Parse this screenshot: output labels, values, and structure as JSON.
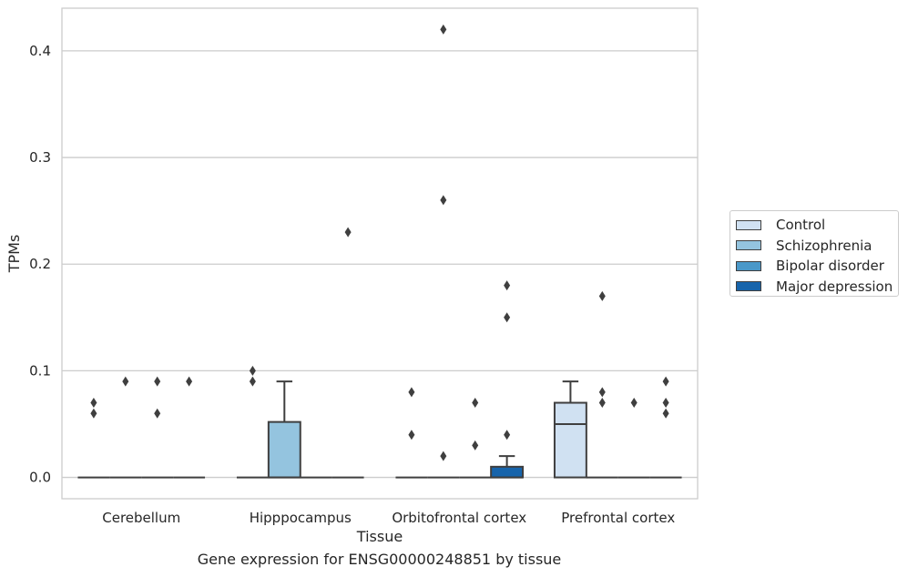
{
  "chart_data": {
    "type": "box",
    "title": "",
    "caption": "Gene expression for ENSG00000248851 by tissue",
    "xlabel": "Tissue",
    "ylabel": "TPMs",
    "ylim": [
      -0.02,
      0.44
    ],
    "yticks": [
      0.0,
      0.1,
      0.2,
      0.3,
      0.4
    ],
    "ytick_labels": [
      "0.0",
      "0.1",
      "0.2",
      "0.3",
      "0.4"
    ],
    "grid": "horizontal",
    "legend_position": "right-outside",
    "categories": [
      "Cerebellum",
      "Hipppocampus",
      "Orbitofrontal cortex",
      "Prefrontal cortex"
    ],
    "series": [
      {
        "name": "Control",
        "color": "#d0e1f2",
        "boxes": [
          {
            "q1": 0,
            "median": 0,
            "q3": 0,
            "whisker_low": 0,
            "whisker_high": 0,
            "outliers": [
              0.06,
              0.07
            ]
          },
          {
            "q1": 0,
            "median": 0,
            "q3": 0,
            "whisker_low": 0,
            "whisker_high": 0,
            "outliers": [
              0.09,
              0.1
            ]
          },
          {
            "q1": 0,
            "median": 0,
            "q3": 0,
            "whisker_low": 0,
            "whisker_high": 0,
            "outliers": [
              0.04,
              0.08
            ]
          },
          {
            "q1": 0,
            "median": 0.05,
            "q3": 0.07,
            "whisker_low": 0,
            "whisker_high": 0.09,
            "outliers": []
          }
        ]
      },
      {
        "name": "Schizophrenia",
        "color": "#94c4df",
        "boxes": [
          {
            "q1": 0,
            "median": 0,
            "q3": 0,
            "whisker_low": 0,
            "whisker_high": 0,
            "outliers": [
              0.09
            ]
          },
          {
            "q1": 0,
            "median": 0,
            "q3": 0.052,
            "whisker_low": 0,
            "whisker_high": 0.09,
            "outliers": []
          },
          {
            "q1": 0,
            "median": 0,
            "q3": 0,
            "whisker_low": 0,
            "whisker_high": 0,
            "outliers": [
              0.02,
              0.26,
              0.42
            ]
          },
          {
            "q1": 0,
            "median": 0,
            "q3": 0,
            "whisker_low": 0,
            "whisker_high": 0,
            "outliers": [
              0.07,
              0.08,
              0.17
            ]
          }
        ]
      },
      {
        "name": "Bipolar disorder",
        "color": "#4a98c9",
        "boxes": [
          {
            "q1": 0,
            "median": 0,
            "q3": 0,
            "whisker_low": 0,
            "whisker_high": 0,
            "outliers": [
              0.06,
              0.09
            ]
          },
          {
            "q1": 0,
            "median": 0,
            "q3": 0,
            "whisker_low": 0,
            "whisker_high": 0,
            "outliers": []
          },
          {
            "q1": 0,
            "median": 0,
            "q3": 0,
            "whisker_low": 0,
            "whisker_high": 0,
            "outliers": [
              0.03,
              0.07
            ]
          },
          {
            "q1": 0,
            "median": 0,
            "q3": 0,
            "whisker_low": 0,
            "whisker_high": 0,
            "outliers": [
              0.07
            ]
          }
        ]
      },
      {
        "name": "Major depression",
        "color": "#1764ab",
        "boxes": [
          {
            "q1": 0,
            "median": 0,
            "q3": 0,
            "whisker_low": 0,
            "whisker_high": 0,
            "outliers": [
              0.09
            ]
          },
          {
            "q1": 0,
            "median": 0,
            "q3": 0,
            "whisker_low": 0,
            "whisker_high": 0,
            "outliers": [
              0.23
            ]
          },
          {
            "q1": 0,
            "median": 0,
            "q3": 0.01,
            "whisker_low": 0,
            "whisker_high": 0.02,
            "outliers": [
              0.04,
              0.15,
              0.18
            ]
          },
          {
            "q1": 0,
            "median": 0,
            "q3": 0,
            "whisker_low": 0,
            "whisker_high": 0,
            "outliers": [
              0.06,
              0.07,
              0.09
            ]
          }
        ]
      }
    ]
  }
}
